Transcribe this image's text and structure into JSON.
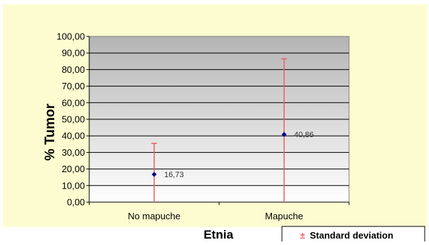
{
  "chart_data": {
    "type": "scatter",
    "categories": [
      "No mapuche",
      "Mapuche"
    ],
    "values": [
      16.73,
      40.86
    ],
    "data_labels": [
      "16,73",
      "40,86"
    ],
    "error_bars": {
      "upper": [
        35.5,
        86.5
      ],
      "lower": [
        0,
        0
      ]
    },
    "ylim": [
      0,
      100
    ],
    "yticks": [
      "0,00",
      "10,00",
      "20,00",
      "30,00",
      "40,00",
      "50,00",
      "60,00",
      "70,00",
      "80,00",
      "90,00",
      "100,00"
    ],
    "ytick_values": [
      0,
      10,
      20,
      30,
      40,
      50,
      60,
      70,
      80,
      90,
      100
    ],
    "xlabel": "Etnia",
    "ylabel": "% Tumor",
    "grid": true,
    "legend": {
      "position": "bottom-right",
      "symbol": "±",
      "label": "Standard deviation"
    },
    "colors": {
      "background": "#fdfcd0",
      "plot_top": "#b4b4b4",
      "plot_bottom": "#ffffff",
      "marker": "#00008b",
      "error_bar": "#e8606a"
    }
  }
}
